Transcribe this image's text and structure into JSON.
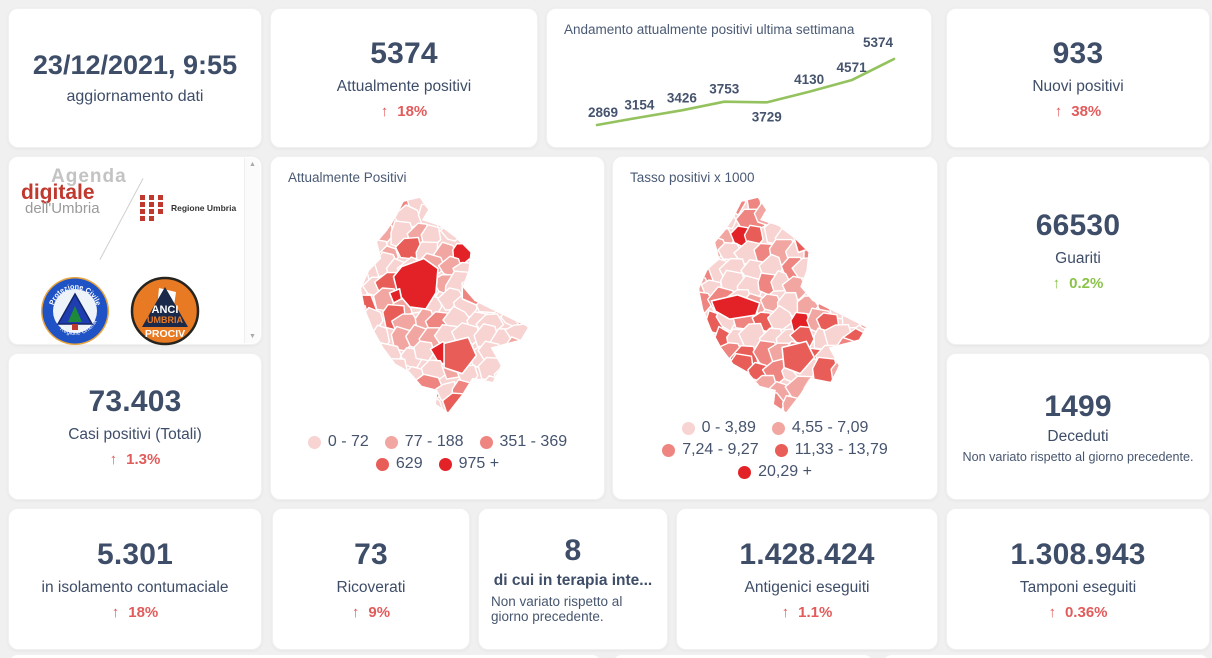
{
  "strings": {
    "arrow_up": "↑"
  },
  "icons": {
    "scroll_up": "▲",
    "scroll_down": "▼"
  },
  "colors": {
    "accent_red": "#e25b5b",
    "accent_green": "#8bc34a",
    "number_slate": "#3e4d68",
    "chart_line": "#94c25e"
  },
  "cards": {
    "update": {
      "value": "23/12/2021, 9:55",
      "label": "aggiornamento dati"
    },
    "attualmente_positivi": {
      "value": "5374",
      "label": "Attualmente positivi",
      "delta": "18%"
    },
    "nuovi_positivi": {
      "value": "933",
      "label": "Nuovi positivi",
      "delta": "38%"
    },
    "guariti": {
      "value": "66530",
      "label": "Guariti",
      "delta": "0.2%"
    },
    "casi_totali": {
      "value": "73.403",
      "label": "Casi positivi (Totali)",
      "delta": "1.3%"
    },
    "deceduti": {
      "value": "1499",
      "label": "Deceduti",
      "note": "Non variato rispetto al giorno precedente."
    },
    "isolamento": {
      "value": "5.301",
      "label": "in isolamento contumaciale",
      "delta": "18%"
    },
    "ricoverati": {
      "value": "73",
      "label": "Ricoverati",
      "delta": "9%"
    },
    "terapia_intensiva": {
      "value": "8",
      "label": "di cui in terapia inte...",
      "note": "Non variato rispetto al giorno precedente."
    },
    "antigenici": {
      "value": "1.428.424",
      "label": "Antigenici eseguiti",
      "delta": "1.1%"
    },
    "tamponi": {
      "value": "1.308.943",
      "label": "Tamponi eseguiti",
      "delta": "0.36%"
    }
  },
  "chart_data": {
    "type": "line",
    "title": "Andamento attualmente positivi ultima settimana",
    "values": [
      2869,
      3154,
      3426,
      3753,
      3729,
      4130,
      4571,
      5374
    ],
    "data_labels": true,
    "grid": false,
    "axes_hidden": true,
    "line_color": "#94c25e",
    "label_color": "#45536d"
  },
  "maps": {
    "attualmente_positivi": {
      "title": "Attualmente Positivi",
      "legend": [
        {
          "label": "0 - 72",
          "color": "#f7d3d1"
        },
        {
          "label": "77 - 188",
          "color": "#f2a6a1"
        },
        {
          "label": "351 - 369",
          "color": "#ee8581"
        },
        {
          "label": "629",
          "color": "#e95d58"
        },
        {
          "label": "975 +",
          "color": "#e32227"
        }
      ]
    },
    "tasso_positivi": {
      "title": "Tasso positivi x 1000",
      "legend": [
        {
          "label": "0 - 3,89",
          "color": "#f7d3d1"
        },
        {
          "label": "4,55 - 7,09",
          "color": "#f2a6a1"
        },
        {
          "label": "7,24 - 9,27",
          "color": "#ee8581"
        },
        {
          "label": "11,33 - 13,79",
          "color": "#e95d58"
        },
        {
          "label": "20,29 +",
          "color": "#e32227"
        }
      ]
    }
  },
  "logos": {
    "agenda_line1": "Agenda",
    "agenda_line2": "digitale",
    "agenda_line3": "dell'Umbria",
    "regione": "Regione Umbria",
    "protezione_top": "Protezione Civile",
    "protezione_bottom": "Regione Umbria",
    "anci_line1": "ANCI",
    "anci_line2": "UMBRIA",
    "anci_line3": "PROCIV"
  }
}
